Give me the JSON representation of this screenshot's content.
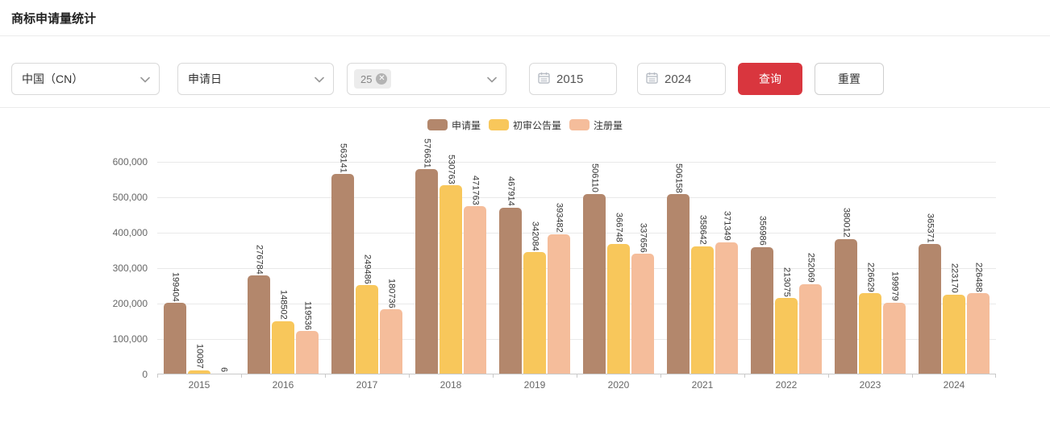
{
  "page": {
    "title": "商标申请量统计"
  },
  "filters": {
    "region": {
      "value": "中国（CN）"
    },
    "date_type": {
      "value": "申请日"
    },
    "nice_class": {
      "tag": "25",
      "remove_icon": "close-circle-icon"
    },
    "start_year": {
      "value": "2015",
      "icon": "calendar-icon"
    },
    "end_year": {
      "value": "2024",
      "icon": "calendar-icon"
    },
    "query_label": "查询",
    "reset_label": "重置"
  },
  "colors": {
    "query_button": "#D9363E",
    "series_apply": "#B3876C",
    "series_preliminary": "#F8C75B",
    "series_register": "#F5BD9B",
    "axis_text": "#666666",
    "gridline": "#E9E9E9"
  },
  "chart_data": {
    "type": "bar",
    "title": "",
    "xlabel": "",
    "ylabel": "",
    "categories": [
      "2015",
      "2016",
      "2017",
      "2018",
      "2019",
      "2020",
      "2021",
      "2022",
      "2023",
      "2024"
    ],
    "series": [
      {
        "name": "申请量",
        "color": "#B3876C",
        "values": [
          199404,
          276784,
          563141,
          576631,
          467914,
          506110,
          506158,
          356986,
          380012,
          365371
        ]
      },
      {
        "name": "初审公告量",
        "color": "#F8C75B",
        "values": [
          10087,
          148502,
          249486,
          530763,
          342084,
          366748,
          358642,
          213075,
          226629,
          223170
        ]
      },
      {
        "name": "注册量",
        "color": "#F5BD9B",
        "values": [
          6,
          119536,
          180736,
          471763,
          393482,
          337656,
          371349,
          252069,
          199979,
          226488
        ]
      }
    ],
    "ylim": [
      0,
      600000
    ],
    "y_tick_labels": [
      "0",
      "100,000",
      "200,000",
      "300,000",
      "400,000",
      "500,000",
      "600,000"
    ],
    "grid": true,
    "legend_position": "top",
    "value_label_rotation": 90
  }
}
